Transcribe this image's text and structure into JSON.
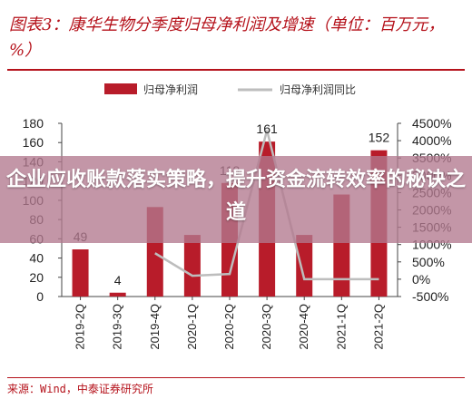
{
  "title": "图表3：康华生物分季度归母净利润及增速（单位：百万元，%）",
  "overlay_headline": "企业应收账款落实策略，提升资金流转效率的秘诀之道",
  "source": "来源：Wind，中泰证券研究所",
  "colors": {
    "brand": "#b5121b",
    "bar": "#b81c2a",
    "line": "#bdbdbd",
    "overlay": "#b2788e"
  },
  "chart_data": {
    "type": "bar",
    "categories": [
      "2019-2Q",
      "2019-3Q",
      "2019-4Q",
      "2020-1Q",
      "2020-2Q",
      "2020-3Q",
      "2020-4Q",
      "2021-1Q",
      "2021-2Q"
    ],
    "series": [
      {
        "name": "归母净利润",
        "type": "bar",
        "axis": "left",
        "values": [
          49,
          4,
          93,
          64,
          118,
          161,
          64,
          106,
          152
        ]
      },
      {
        "name": "归母净利润同比",
        "type": "line",
        "axis": "right",
        "values": [
          null,
          null,
          750,
          100,
          150,
          4300,
          0,
          0,
          0
        ]
      }
    ],
    "data_labels": [
      "49",
      "4",
      "",
      "",
      "118",
      "161",
      "",
      "",
      "152"
    ],
    "y_left": {
      "lim": [
        0,
        180
      ],
      "ticks": [
        "0",
        "20",
        "40",
        "60",
        "80",
        "100",
        "120",
        "140",
        "160",
        "180"
      ]
    },
    "y_right": {
      "lim": [
        -500,
        4500
      ],
      "ticks": [
        "-500%",
        "0%",
        "500%",
        "1000%",
        "1500%",
        "2000%",
        "2500%",
        "3000%",
        "3500%",
        "4000%",
        "4500%"
      ]
    },
    "legend_position": "top",
    "grid": false
  }
}
